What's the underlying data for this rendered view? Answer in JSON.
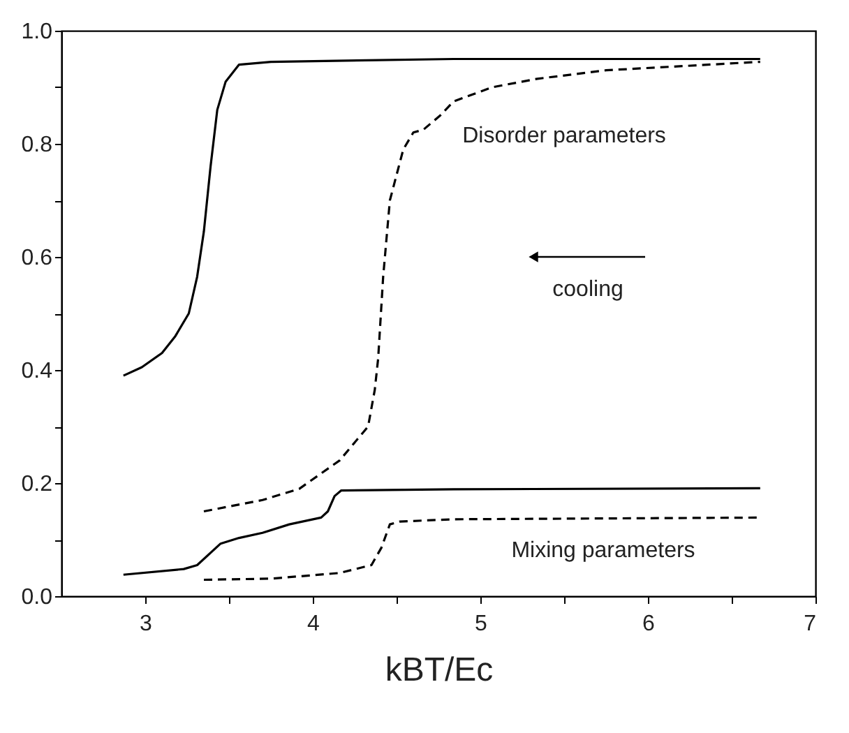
{
  "chart_data": {
    "type": "line",
    "xlabel": "kBT/Ec",
    "xlim": [
      2.5,
      7
    ],
    "xticks": [
      3,
      {
        "value": 3.5,
        "label": null
      },
      4,
      {
        "value": 4.5,
        "label": null
      },
      5,
      {
        "value": 5.5,
        "label": null
      },
      6,
      {
        "value": 6.5,
        "label": null
      },
      7
    ],
    "ylim": [
      0,
      1
    ],
    "yticks": [
      {
        "value": 0,
        "label": "0.0"
      },
      {
        "value": 0.1,
        "label": null
      },
      {
        "value": 0.2,
        "label": "0.2"
      },
      {
        "value": 0.3,
        "label": null
      },
      {
        "value": 0.4,
        "label": "0.4"
      },
      {
        "value": 0.5,
        "label": null
      },
      {
        "value": 0.6,
        "label": "0.6"
      },
      {
        "value": 0.7,
        "label": null
      },
      {
        "value": 0.8,
        "label": "0.8"
      },
      {
        "value": 0.9,
        "label": null
      },
      {
        "value": 1,
        "label": "1.0"
      }
    ],
    "grid": false,
    "marker": "none",
    "annotations": [
      "Disorder parameters",
      "cooling",
      "Mixing parameters"
    ],
    "series": [
      {
        "color": "#000000",
        "line_style": "solid",
        "x": [
          2.87,
          2.98,
          3.1,
          3.18,
          3.26,
          3.31,
          3.35,
          3.39,
          3.43,
          3.48,
          3.56,
          3.75,
          4.84,
          6.67
        ],
        "values": [
          0.39,
          0.405,
          0.43,
          0.46,
          0.5,
          0.565,
          0.645,
          0.76,
          0.86,
          0.91,
          0.94,
          0.945,
          0.95,
          0.95
        ]
      },
      {
        "color": "#000000",
        "line_style": "dashed",
        "x": [
          3.35,
          3.7,
          3.92,
          4.16,
          4.33,
          4.37,
          4.39,
          4.42,
          4.46,
          4.54,
          4.6,
          4.66,
          4.76,
          4.84,
          5.07,
          5.34,
          5.75,
          6.67
        ],
        "values": [
          0.15,
          0.17,
          0.19,
          0.24,
          0.3,
          0.365,
          0.42,
          0.565,
          0.7,
          0.79,
          0.82,
          0.825,
          0.85,
          0.875,
          0.9,
          0.915,
          0.93,
          0.945
        ]
      },
      {
        "color": "#000000",
        "line_style": "solid",
        "x": [
          2.87,
          3.23,
          3.31,
          3.45,
          3.56,
          3.7,
          3.86,
          4.05,
          4.09,
          4.13,
          4.17,
          4.84,
          6.67
        ],
        "values": [
          0.038,
          0.048,
          0.055,
          0.093,
          0.103,
          0.112,
          0.127,
          0.139,
          0.15,
          0.177,
          0.187,
          0.189,
          0.191
        ]
      },
      {
        "color": "#000000",
        "line_style": "dashed",
        "x": [
          3.35,
          3.75,
          4.16,
          4.35,
          4.41,
          4.46,
          4.52,
          4.84,
          6.67
        ],
        "values": [
          0.029,
          0.031,
          0.041,
          0.055,
          0.086,
          0.127,
          0.132,
          0.136,
          0.139
        ]
      }
    ]
  }
}
